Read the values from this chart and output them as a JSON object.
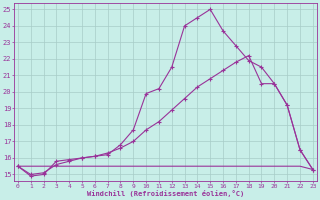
{
  "xlabel": "Windchill (Refroidissement éolien,°C)",
  "bg_color": "#c8eee8",
  "line_color": "#993399",
  "grid_color": "#a8ccc8",
  "xlim_min": -0.3,
  "xlim_max": 23.3,
  "ylim_min": 14.6,
  "ylim_max": 25.4,
  "xticks": [
    0,
    1,
    2,
    3,
    4,
    5,
    6,
    7,
    8,
    9,
    10,
    11,
    12,
    13,
    14,
    15,
    16,
    17,
    18,
    19,
    20,
    21,
    22,
    23
  ],
  "yticks": [
    15,
    16,
    17,
    18,
    19,
    20,
    21,
    22,
    23,
    24,
    25
  ],
  "curve1_x": [
    0,
    1,
    2,
    3,
    4,
    5,
    6,
    7,
    8,
    9,
    10,
    11,
    12,
    13,
    14,
    15,
    16,
    17,
    18,
    19,
    20,
    21,
    22,
    23
  ],
  "curve1_y": [
    15.5,
    14.9,
    15.0,
    15.8,
    15.9,
    16.0,
    16.1,
    16.2,
    16.8,
    17.7,
    19.9,
    20.2,
    21.5,
    24.0,
    24.5,
    25.0,
    23.7,
    22.8,
    21.9,
    21.5,
    20.5,
    19.2,
    16.5,
    15.3
  ],
  "curve2_x": [
    0,
    1,
    2,
    3,
    4,
    5,
    6,
    7,
    8,
    9,
    10,
    11,
    12,
    13,
    14,
    15,
    16,
    17,
    18,
    19,
    20,
    21,
    22,
    23
  ],
  "curve2_y": [
    15.5,
    15.0,
    15.1,
    15.6,
    15.8,
    16.0,
    16.1,
    16.3,
    16.6,
    17.0,
    17.7,
    18.2,
    18.9,
    19.6,
    20.3,
    20.8,
    21.3,
    21.8,
    22.2,
    20.5,
    20.5,
    19.2,
    16.5,
    15.3
  ],
  "curve3_x": [
    0,
    1,
    2,
    3,
    4,
    5,
    6,
    7,
    8,
    9,
    10,
    11,
    12,
    13,
    14,
    15,
    16,
    17,
    18,
    19,
    20,
    21,
    22,
    23
  ],
  "curve3_y": [
    15.5,
    15.5,
    15.5,
    15.5,
    15.5,
    15.5,
    15.5,
    15.5,
    15.5,
    15.5,
    15.5,
    15.5,
    15.5,
    15.5,
    15.5,
    15.5,
    15.5,
    15.5,
    15.5,
    15.5,
    15.5,
    15.5,
    15.5,
    15.3
  ]
}
